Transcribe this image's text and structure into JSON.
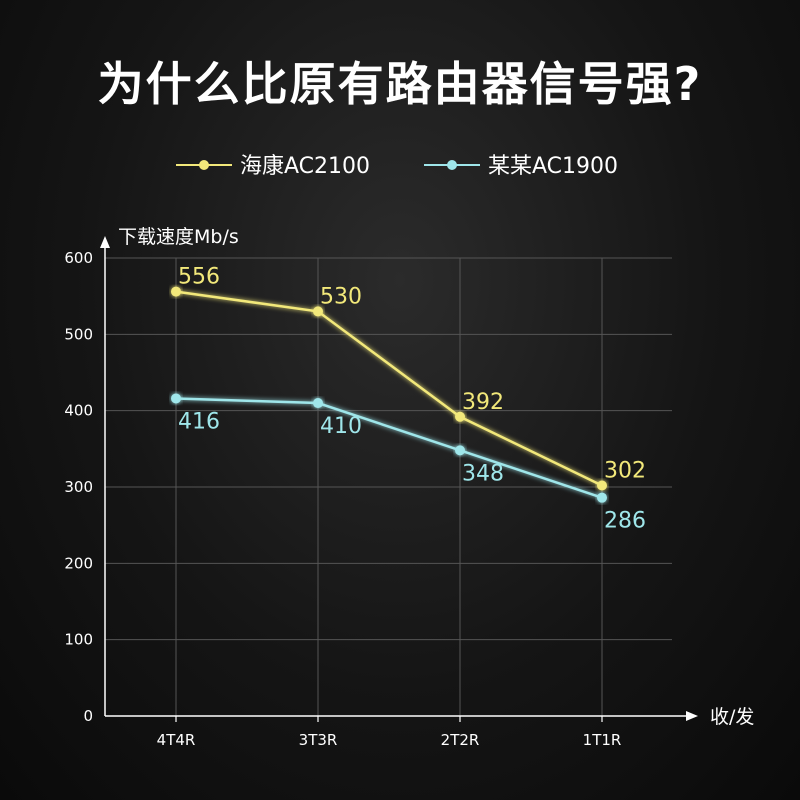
{
  "headline": "为什么比原有路由器信号强?",
  "colors": {
    "series_1": "#f2e87a",
    "series_2": "#9fe6ea",
    "grid": "#555555",
    "axis": "#ffffff"
  },
  "chart_data": {
    "type": "line",
    "categories": [
      "4T4R",
      "3T3R",
      "2T2R",
      "1T1R"
    ],
    "series": [
      {
        "name": "海康AC2100",
        "values": [
          556,
          530,
          392,
          302
        ]
      },
      {
        "name": "某某AC1900",
        "values": [
          416,
          410,
          348,
          286
        ]
      }
    ],
    "ylabel": "下载速度Mb/s",
    "xlabel": "收/发",
    "ylim": [
      0,
      600
    ],
    "yticks": [
      0,
      100,
      200,
      300,
      400,
      500,
      600
    ],
    "grid": true,
    "legend": "top-center"
  }
}
